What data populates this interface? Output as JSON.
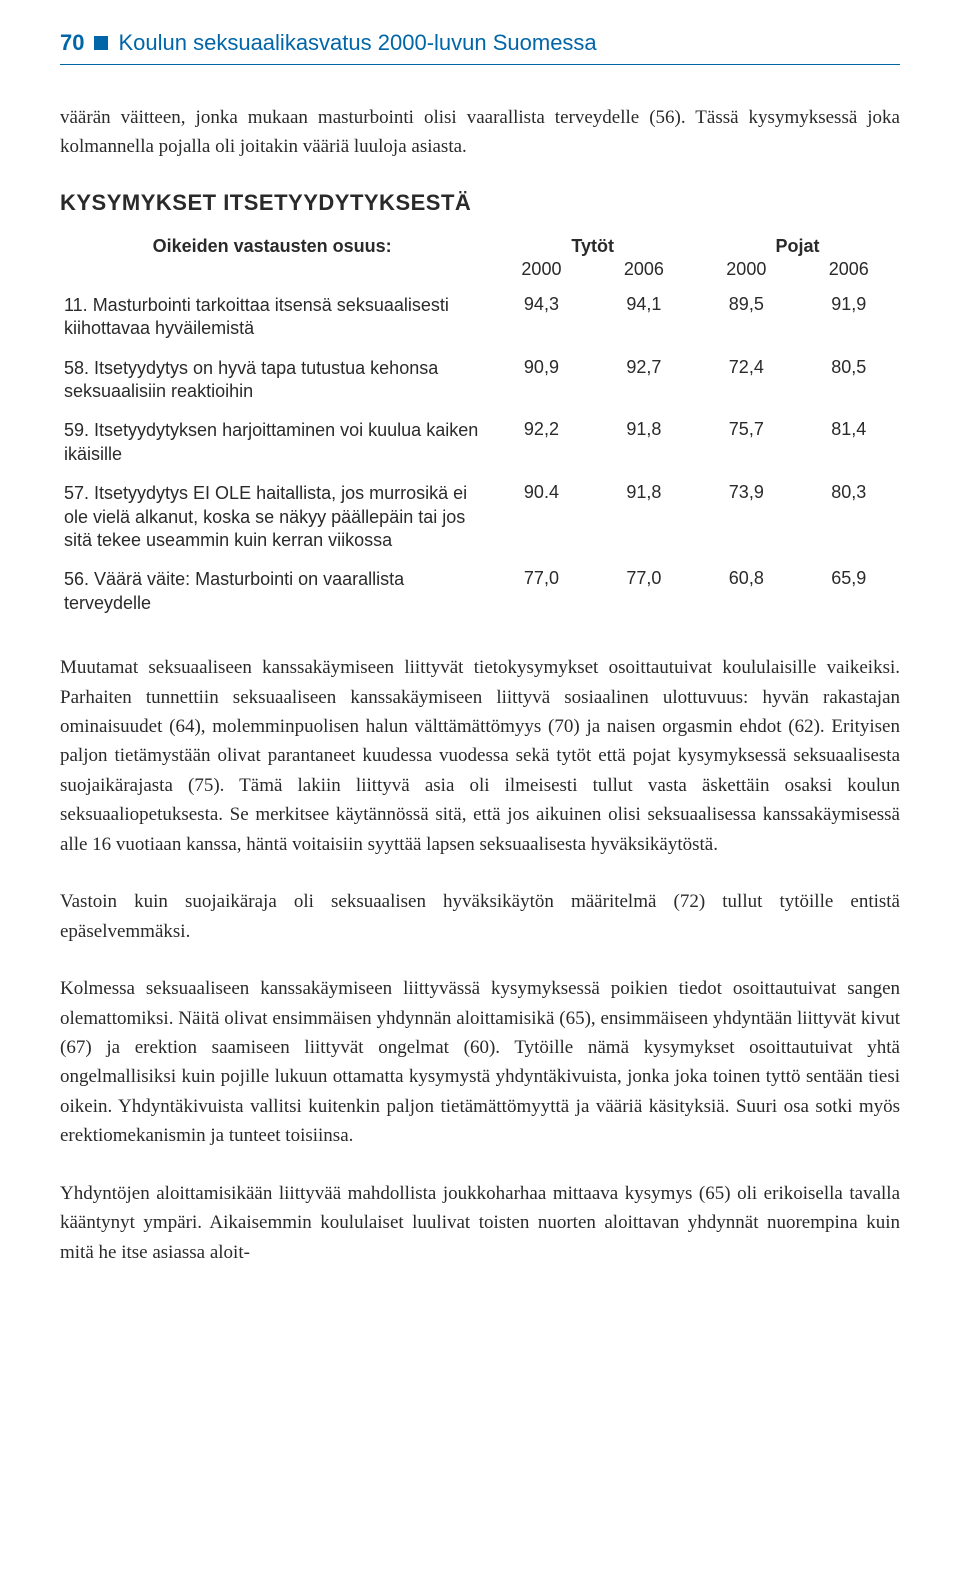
{
  "header": {
    "page_number": "70",
    "chapter_title": "Koulun seksuaalikasvatus 2000-luvun Suomessa"
  },
  "intro_paragraph": "väärän väitteen, jonka mukaan masturbointi olisi vaarallista terveydelle (56). Tässä kysymyksessä joka kolmannella pojalla oli joitakin vääriä luuloja asiasta.",
  "table": {
    "section_title": "KYSYMYKSET ITSETYYDYTYKSESTÄ",
    "row_header_label": "Oikeiden vastausten osuus:",
    "group_headers": [
      "Tytöt",
      "Pojat"
    ],
    "year_headers": [
      "2000",
      "2006",
      "2000",
      "2006"
    ],
    "rows": [
      {
        "label": "11. Masturbointi tarkoittaa itsensä seksuaalisesti kiihottavaa hyväilemistä",
        "values": [
          "94,3",
          "94,1",
          "89,5",
          "91,9"
        ]
      },
      {
        "label": "58. Itsetyydytys on hyvä tapa tutustua kehonsa seksuaalisiin reaktioihin",
        "values": [
          "90,9",
          "92,7",
          "72,4",
          "80,5"
        ]
      },
      {
        "label": "59. Itsetyydytyksen harjoittaminen voi kuulua kaiken ikäisille",
        "values": [
          "92,2",
          "91,8",
          "75,7",
          "81,4"
        ]
      },
      {
        "label": "57. Itsetyydytys EI OLE haitallista, jos murrosikä ei ole vielä alkanut, koska se näkyy päällepäin tai jos sitä tekee useammin kuin kerran viikossa",
        "values": [
          "90.4",
          "91,8",
          "73,9",
          "80,3"
        ]
      },
      {
        "label": "56. Väärä väite: Masturbointi on vaarallista terveydelle",
        "values": [
          "77,0",
          "77,0",
          "60,8",
          "65,9"
        ]
      }
    ]
  },
  "paragraphs": [
    "Muutamat seksuaaliseen kanssakäymiseen liittyvät tietokysymykset osoittautuivat koululaisille vaikeiksi. Parhaiten tunnettiin seksuaaliseen kanssakäymiseen liittyvä sosiaalinen ulottuvuus: hyvän rakastajan ominaisuudet (64), molemminpuolisen halun välttämättömyys (70) ja naisen orgasmin ehdot (62). Erityisen paljon tietämystään olivat parantaneet kuudessa vuodessa sekä tytöt että pojat kysymyksessä seksuaalisesta suojaikärajasta (75). Tämä lakiin liittyvä asia oli ilmeisesti tullut vasta äskettäin osaksi koulun seksuaaliopetuksesta. Se merkitsee käytännössä sitä, että jos aikuinen olisi seksuaalisessa kanssakäymisessä alle 16 vuotiaan kanssa, häntä voitaisiin syyttää lapsen seksuaalisesta hyväksikäytöstä.",
    "Vastoin kuin suojaikäraja oli seksuaalisen hyväksikäytön määritelmä (72) tullut tytöille entistä epäselvemmäksi.",
    "Kolmessa seksuaaliseen kanssakäymiseen liittyvässä kysymyksessä poikien tiedot osoittautuivat sangen olemattomiksi. Näitä olivat ensimmäisen yhdynnän aloittamisikä (65), ensimmäiseen yhdyntään liittyvät kivut (67) ja erektion saamiseen liittyvät ongelmat (60). Tytöille nämä kysymykset osoittautuivat yhtä ongelmallisiksi kuin pojille lukuun ottamatta kysymystä yhdyntäkivuista, jonka joka toinen tyttö sentään tiesi oikein. Yhdyntäkivuista vallitsi kuitenkin paljon tietämättömyyttä ja vääriä käsityksiä. Suuri osa sotki myös erektiomekanismin ja tunteet toisiinsa.",
    "Yhdyntöjen aloittamisikään liittyvää mahdollista joukkoharhaa mittaava kysymys (65) oli erikoisella tavalla kääntynyt ympäri. Aikaisemmin koululaiset luulivat toisten nuorten aloittavan yhdynnät nuorempina kuin mitä he itse asiassa aloit-"
  ]
}
